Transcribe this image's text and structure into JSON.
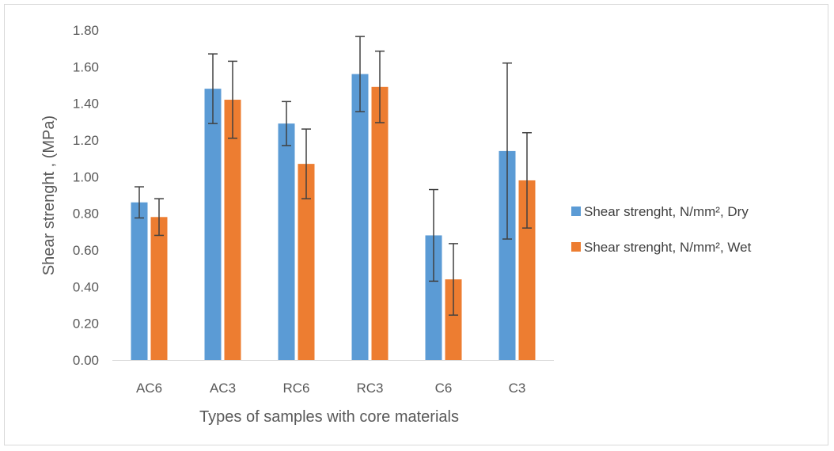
{
  "chart_data": {
    "type": "bar",
    "title": "",
    "xlabel": "Types of samples with core materials",
    "ylabel": "Shear strenght , (MPa)",
    "ylim": [
      0,
      1.8
    ],
    "yticks": [
      "0.00",
      "0.20",
      "0.40",
      "0.60",
      "0.80",
      "1.00",
      "1.20",
      "1.40",
      "1.60",
      "1.80"
    ],
    "categories": [
      "AC6",
      "AC3",
      "RC6",
      "RC3",
      "C6",
      "C3"
    ],
    "grid": false,
    "legend_position": "right",
    "series": [
      {
        "name": "Shear strenght, N/mm², Dry",
        "color": "#5B9BD5",
        "values": [
          0.86,
          1.48,
          1.29,
          1.56,
          0.68,
          1.14
        ],
        "error": [
          0.085,
          0.19,
          0.12,
          0.205,
          0.25,
          0.48
        ]
      },
      {
        "name": "Shear strenght, N/mm², Wet",
        "color": "#ED7D31",
        "values": [
          0.78,
          1.42,
          1.07,
          1.49,
          0.44,
          0.98
        ],
        "error": [
          0.1,
          0.21,
          0.19,
          0.195,
          0.195,
          0.26
        ]
      }
    ]
  }
}
